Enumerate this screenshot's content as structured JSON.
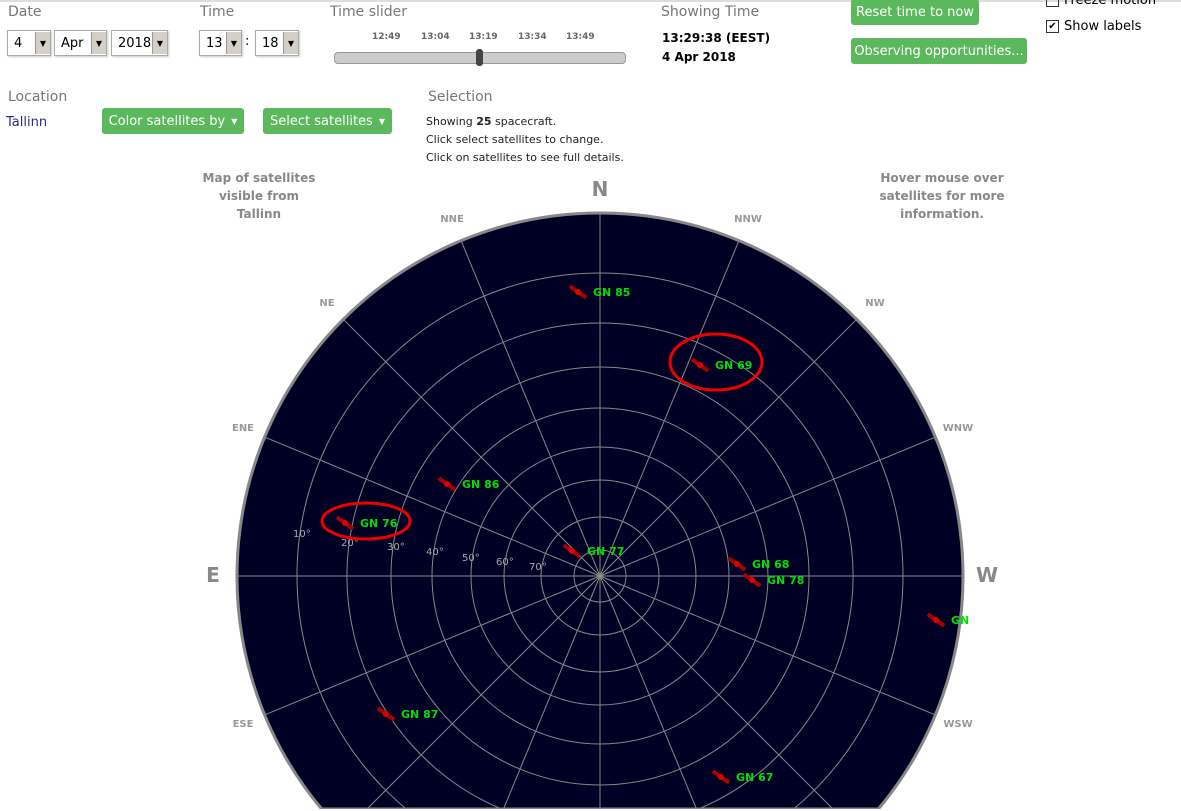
{
  "date": {
    "label": "Date",
    "day": "4",
    "month": "Apr",
    "year": "2018"
  },
  "time": {
    "label": "Time",
    "hour": "13",
    "minute": "18",
    "sep": ":"
  },
  "slider": {
    "label": "Time slider",
    "ticks": [
      "12:49",
      "13:04",
      "13:19",
      "13:34",
      "13:49"
    ],
    "position_fraction": 0.5
  },
  "showing": {
    "label": "Showing Time",
    "time": "13:29:38 (EEST)",
    "date": "4 Apr 2018"
  },
  "buttons": {
    "reset": "Reset time to now",
    "observing": "Observing opportunities...",
    "color_by": "Color satellites by",
    "select": "Select satellites"
  },
  "options": {
    "freeze": "Freeze motion",
    "freeze_checked": false,
    "labels": "Show labels",
    "labels_checked": true
  },
  "location": {
    "label": "Location",
    "value": "Tallinn"
  },
  "selection": {
    "label": "Selection",
    "prefix": "Showing ",
    "count": "25",
    "suffix": " spacecraft.",
    "line2": "Click select satellites to change.",
    "line3": "Click on satellites to see full details."
  },
  "map": {
    "left_note": "Map of satellites visible from Tallinn",
    "right_note": "Hover mouse over satellites for more information.",
    "compass": {
      "N": "N",
      "E": "E",
      "W": "W",
      "NNE": "NNE",
      "NE": "NE",
      "ENE": "ENE",
      "NNW": "NNW",
      "NW": "NW",
      "WNW": "WNW",
      "ESE": "ESE",
      "WSW": "WSW"
    },
    "elevations": [
      "10°",
      "20°",
      "30°",
      "40°",
      "50°",
      "60°",
      "70°"
    ],
    "satellites": [
      "GN 85",
      "GN 69",
      "GN 86",
      "GN 76",
      "GN 77",
      "GN 68",
      "GN 78",
      "GN",
      "GN 87",
      "GN 67"
    ],
    "highlighted": [
      "GN 69",
      "GN 76"
    ],
    "colors": {
      "sky": "#000024",
      "label": "#00e000",
      "highlight": "#e00000"
    }
  }
}
